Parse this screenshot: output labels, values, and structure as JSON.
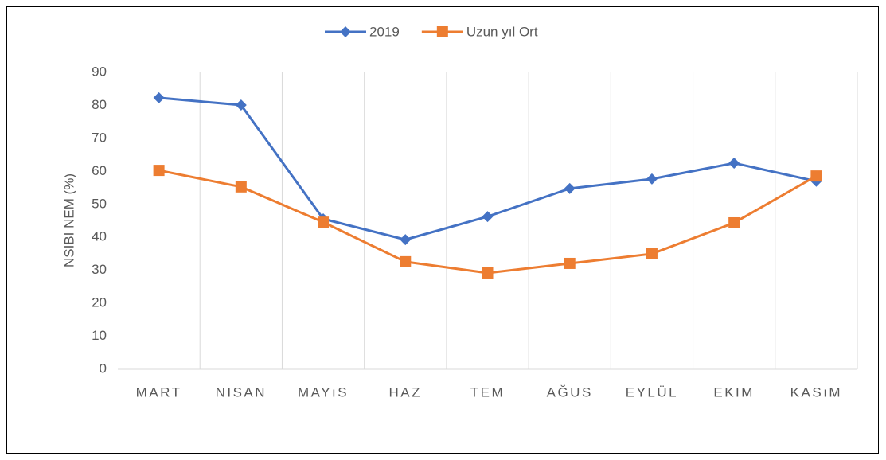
{
  "chart_data": {
    "type": "line",
    "categories": [
      "MART",
      "NISAN",
      "MAYıS",
      "HAZ",
      "TEM",
      "AĞUS",
      "EYLÜL",
      "EKIM",
      "KASıM"
    ],
    "series": [
      {
        "name": "2019",
        "color": "#4472c4",
        "marker": "diamond",
        "values": [
          82.3,
          80.1,
          45.6,
          39.3,
          46.3,
          54.8,
          57.7,
          62.5,
          57.0
        ]
      },
      {
        "name": "Uzun yıl Ort",
        "color": "#ed7d31",
        "marker": "square",
        "values": [
          60.3,
          55.3,
          44.6,
          32.6,
          29.2,
          32.1,
          35.0,
          44.4,
          58.6
        ]
      }
    ],
    "ylabel": "NSIBI NEM (%)",
    "ylim": [
      0,
      90
    ],
    "yticks": [
      0,
      10,
      20,
      30,
      40,
      50,
      60,
      70,
      80,
      90
    ],
    "grid": "vertical",
    "legend": "top"
  }
}
